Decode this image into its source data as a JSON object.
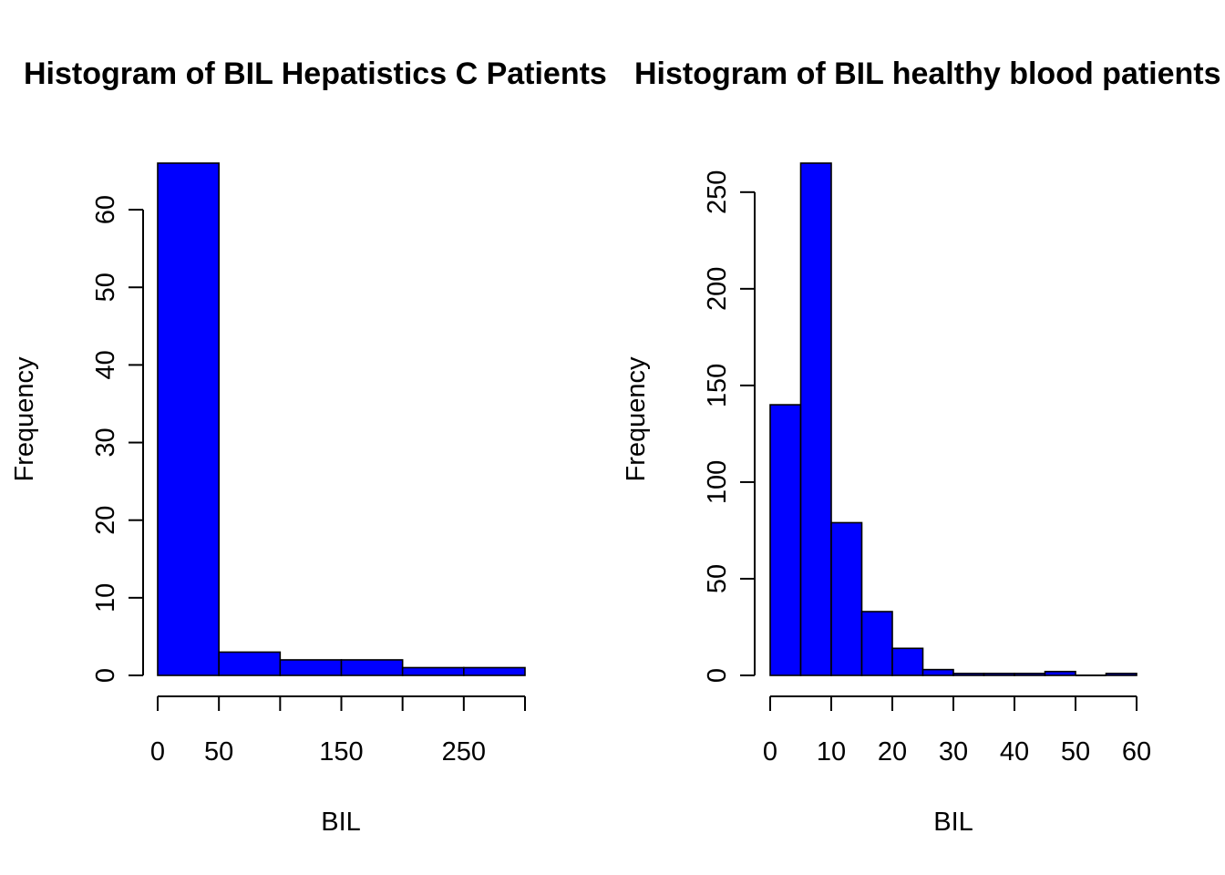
{
  "chart_data": [
    {
      "type": "bar",
      "title": "Histogram of BIL Hepatistics C Patients",
      "xlabel": "BIL",
      "ylabel": "Frequency",
      "bins": [
        [
          0,
          50
        ],
        [
          50,
          100
        ],
        [
          100,
          150
        ],
        [
          150,
          200
        ],
        [
          200,
          250
        ],
        [
          250,
          300
        ]
      ],
      "values": [
        66,
        3,
        2,
        2,
        1,
        1
      ],
      "xlim": [
        0,
        300
      ],
      "ylim": [
        0,
        66
      ],
      "xticks": [
        0,
        50,
        100,
        150,
        200,
        250,
        300
      ],
      "xtick_labels": [
        "0",
        "50",
        "",
        "150",
        "",
        "250",
        ""
      ],
      "yticks": [
        0,
        10,
        20,
        30,
        40,
        50,
        60
      ],
      "ytick_labels": [
        "0",
        "10",
        "20",
        "30",
        "40",
        "50",
        "60"
      ],
      "bar_color": "#0000ff",
      "grid": false
    },
    {
      "type": "bar",
      "title": "Histogram of BIL healthy blood patients",
      "xlabel": "BIL",
      "ylabel": "Frequency",
      "bins": [
        [
          0,
          5
        ],
        [
          5,
          10
        ],
        [
          10,
          15
        ],
        [
          15,
          20
        ],
        [
          20,
          25
        ],
        [
          25,
          30
        ],
        [
          30,
          35
        ],
        [
          35,
          40
        ],
        [
          40,
          45
        ],
        [
          45,
          50
        ],
        [
          50,
          55
        ],
        [
          55,
          60
        ]
      ],
      "values": [
        140,
        265,
        79,
        33,
        14,
        3,
        1,
        1,
        1,
        2,
        0,
        1
      ],
      "xlim": [
        0,
        60
      ],
      "ylim": [
        0,
        265
      ],
      "xticks": [
        0,
        10,
        20,
        30,
        40,
        50,
        60
      ],
      "xtick_labels": [
        "0",
        "10",
        "20",
        "30",
        "40",
        "50",
        "60"
      ],
      "yticks": [
        0,
        50,
        100,
        150,
        200,
        250
      ],
      "ytick_labels": [
        "0",
        "50",
        "100",
        "150",
        "200",
        "250"
      ],
      "bar_color": "#0000ff",
      "grid": false
    }
  ]
}
